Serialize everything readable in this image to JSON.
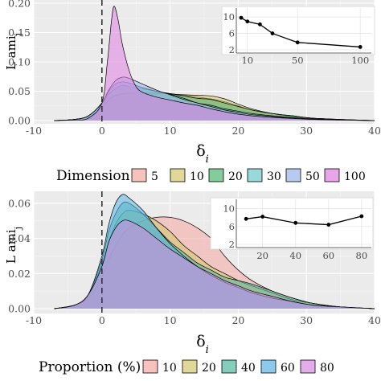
{
  "chart_data": [
    {
      "type": "area",
      "id": "top",
      "xlabel": "δ",
      "xlabel_sub": "i",
      "ylabel": "L ami",
      "ylabel_sub": "j",
      "xlim": [
        -10,
        40
      ],
      "ylim": [
        0,
        0.2
      ],
      "x_ticks": [
        "-10",
        "0",
        "10",
        "20",
        "30",
        "40"
      ],
      "y_ticks": [
        "0.00",
        "0.05",
        "0.10",
        "0.15",
        "0.20"
      ],
      "vline": 0,
      "legend_title": "Dimension",
      "legend_position": "bottom",
      "series": [
        {
          "name": "5",
          "color": "#f4a6a0",
          "points": [
            [
              -7,
              0
            ],
            [
              -4,
              0.002
            ],
            [
              -2,
              0.006
            ],
            [
              0,
              0.02
            ],
            [
              1,
              0.035
            ],
            [
              2,
              0.042
            ],
            [
              3,
              0.045
            ],
            [
              4,
              0.046
            ],
            [
              6,
              0.047
            ],
            [
              8,
              0.047
            ],
            [
              10,
              0.046
            ],
            [
              12,
              0.043
            ],
            [
              14,
              0.04
            ],
            [
              16,
              0.037
            ],
            [
              18,
              0.032
            ],
            [
              20,
              0.025
            ],
            [
              22,
              0.018
            ],
            [
              25,
              0.012
            ],
            [
              28,
              0.008
            ],
            [
              31,
              0.004
            ],
            [
              35,
              0.002
            ],
            [
              40,
              0
            ]
          ]
        },
        {
          "name": "10",
          "color": "#d4c86b",
          "points": [
            [
              -7,
              0
            ],
            [
              -4,
              0.002
            ],
            [
              -2,
              0.006
            ],
            [
              0,
              0.022
            ],
            [
              1,
              0.036
            ],
            [
              2,
              0.043
            ],
            [
              3,
              0.046
            ],
            [
              5,
              0.047
            ],
            [
              8,
              0.046
            ],
            [
              10,
              0.045
            ],
            [
              12,
              0.044
            ],
            [
              14,
              0.043
            ],
            [
              16,
              0.042
            ],
            [
              18,
              0.037
            ],
            [
              20,
              0.028
            ],
            [
              22,
              0.02
            ],
            [
              25,
              0.012
            ],
            [
              28,
              0.007
            ],
            [
              31,
              0.004
            ],
            [
              35,
              0.002
            ],
            [
              40,
              0
            ]
          ]
        },
        {
          "name": "20",
          "color": "#4fb873",
          "points": [
            [
              -7,
              0
            ],
            [
              -4,
              0.002
            ],
            [
              -2,
              0.008
            ],
            [
              0,
              0.028
            ],
            [
              1,
              0.045
            ],
            [
              2,
              0.055
            ],
            [
              3,
              0.06
            ],
            [
              4,
              0.058
            ],
            [
              6,
              0.054
            ],
            [
              8,
              0.05
            ],
            [
              10,
              0.046
            ],
            [
              12,
              0.042
            ],
            [
              14,
              0.038
            ],
            [
              16,
              0.036
            ],
            [
              18,
              0.03
            ],
            [
              20,
              0.024
            ],
            [
              22,
              0.018
            ],
            [
              25,
              0.012
            ],
            [
              28,
              0.008
            ],
            [
              31,
              0.004
            ],
            [
              35,
              0.002
            ],
            [
              40,
              0
            ]
          ]
        },
        {
          "name": "30",
          "color": "#6cc9c9",
          "points": [
            [
              -7,
              0
            ],
            [
              -4,
              0.002
            ],
            [
              -2,
              0.008
            ],
            [
              0,
              0.03
            ],
            [
              1,
              0.05
            ],
            [
              2,
              0.062
            ],
            [
              3,
              0.066
            ],
            [
              4,
              0.064
            ],
            [
              6,
              0.056
            ],
            [
              8,
              0.05
            ],
            [
              10,
              0.045
            ],
            [
              12,
              0.038
            ],
            [
              14,
              0.03
            ],
            [
              16,
              0.026
            ],
            [
              18,
              0.02
            ],
            [
              20,
              0.016
            ],
            [
              22,
              0.012
            ],
            [
              25,
              0.008
            ],
            [
              28,
              0.005
            ],
            [
              31,
              0.003
            ],
            [
              35,
              0.001
            ],
            [
              40,
              0
            ]
          ]
        },
        {
          "name": "50",
          "color": "#9ab4ea",
          "points": [
            [
              -7,
              0
            ],
            [
              -4,
              0.002
            ],
            [
              -2,
              0.008
            ],
            [
              0,
              0.03
            ],
            [
              1,
              0.052
            ],
            [
              2,
              0.068
            ],
            [
              3,
              0.074
            ],
            [
              4,
              0.072
            ],
            [
              6,
              0.062
            ],
            [
              8,
              0.052
            ],
            [
              10,
              0.044
            ],
            [
              12,
              0.036
            ],
            [
              14,
              0.03
            ],
            [
              16,
              0.024
            ],
            [
              18,
              0.018
            ],
            [
              20,
              0.014
            ],
            [
              22,
              0.01
            ],
            [
              25,
              0.007
            ],
            [
              28,
              0.004
            ],
            [
              31,
              0.002
            ],
            [
              35,
              0.001
            ],
            [
              40,
              0
            ]
          ]
        },
        {
          "name": "100",
          "color": "#e07fe0",
          "points": [
            [
              -7,
              0
            ],
            [
              -4,
              0.001
            ],
            [
              -2,
              0.004
            ],
            [
              0,
              0.03
            ],
            [
              0.8,
              0.1
            ],
            [
              1.4,
              0.17
            ],
            [
              1.8,
              0.195
            ],
            [
              2.4,
              0.17
            ],
            [
              3,
              0.13
            ],
            [
              4,
              0.085
            ],
            [
              5,
              0.058
            ],
            [
              6,
              0.048
            ],
            [
              8,
              0.04
            ],
            [
              10,
              0.035
            ],
            [
              12,
              0.03
            ],
            [
              14,
              0.026
            ],
            [
              16,
              0.02
            ],
            [
              18,
              0.015
            ],
            [
              20,
              0.011
            ],
            [
              23,
              0.007
            ],
            [
              27,
              0.004
            ],
            [
              31,
              0.002
            ],
            [
              35,
              0.001
            ],
            [
              40,
              0
            ]
          ]
        }
      ],
      "inset": {
        "type": "line",
        "xlim": [
          5,
          105
        ],
        "ylim": [
          2,
          11
        ],
        "x_ticks": [
          "10",
          "50",
          "100"
        ],
        "y_ticks": [
          "2",
          "6",
          "10"
        ],
        "x": [
          5,
          10,
          20,
          30,
          50,
          100
        ],
        "y": [
          9.8,
          8.9,
          8.2,
          6.0,
          3.8,
          2.7
        ]
      }
    },
    {
      "type": "area",
      "id": "bottom",
      "xlabel": "δ",
      "xlabel_sub": "i",
      "ylabel": "L ami",
      "ylabel_sub": "j",
      "xlim": [
        -10,
        40
      ],
      "ylim": [
        0,
        0.065
      ],
      "x_ticks": [
        "-10",
        "0",
        "10",
        "20",
        "30",
        "40"
      ],
      "y_ticks": [
        "0.00",
        "0.02",
        "0.04",
        "0.06"
      ],
      "vline": 0,
      "legend_title": "Proportion (%)",
      "legend_position": "bottom",
      "series": [
        {
          "name": "10",
          "color": "#f4a6a0",
          "points": [
            [
              -7,
              0
            ],
            [
              -4,
              0.002
            ],
            [
              -2,
              0.006
            ],
            [
              0,
              0.018
            ],
            [
              1,
              0.028
            ],
            [
              2,
              0.036
            ],
            [
              3,
              0.042
            ],
            [
              4,
              0.046
            ],
            [
              6,
              0.05
            ],
            [
              8,
              0.052
            ],
            [
              10,
              0.052
            ],
            [
              12,
              0.05
            ],
            [
              14,
              0.046
            ],
            [
              16,
              0.04
            ],
            [
              18,
              0.03
            ],
            [
              20,
              0.022
            ],
            [
              22,
              0.016
            ],
            [
              25,
              0.01
            ],
            [
              28,
              0.006
            ],
            [
              31,
              0.003
            ],
            [
              35,
              0.001
            ],
            [
              40,
              0
            ]
          ]
        },
        {
          "name": "20",
          "color": "#d4c86b",
          "points": [
            [
              -7,
              0
            ],
            [
              -4,
              0.002
            ],
            [
              -2,
              0.008
            ],
            [
              0,
              0.025
            ],
            [
              1,
              0.038
            ],
            [
              2,
              0.048
            ],
            [
              3,
              0.054
            ],
            [
              4,
              0.056
            ],
            [
              6,
              0.054
            ],
            [
              8,
              0.05
            ],
            [
              10,
              0.044
            ],
            [
              12,
              0.036
            ],
            [
              14,
              0.03
            ],
            [
              16,
              0.024
            ],
            [
              18,
              0.02
            ],
            [
              20,
              0.016
            ],
            [
              22,
              0.013
            ],
            [
              25,
              0.009
            ],
            [
              28,
              0.005
            ],
            [
              31,
              0.003
            ],
            [
              35,
              0.001
            ],
            [
              40,
              0
            ]
          ]
        },
        {
          "name": "40",
          "color": "#4fb8a0",
          "points": [
            [
              -7,
              0
            ],
            [
              -4,
              0.002
            ],
            [
              -2,
              0.008
            ],
            [
              0,
              0.028
            ],
            [
              1,
              0.044
            ],
            [
              2,
              0.054
            ],
            [
              3,
              0.06
            ],
            [
              4,
              0.06
            ],
            [
              6,
              0.054
            ],
            [
              8,
              0.046
            ],
            [
              10,
              0.038
            ],
            [
              12,
              0.032
            ],
            [
              14,
              0.026
            ],
            [
              16,
              0.022
            ],
            [
              18,
              0.018
            ],
            [
              20,
              0.016
            ],
            [
              22,
              0.014
            ],
            [
              25,
              0.01
            ],
            [
              28,
              0.006
            ],
            [
              31,
              0.003
            ],
            [
              35,
              0.001
            ],
            [
              40,
              0
            ]
          ]
        },
        {
          "name": "60",
          "color": "#5ab4e6",
          "points": [
            [
              -7,
              0
            ],
            [
              -4,
              0.002
            ],
            [
              -2,
              0.008
            ],
            [
              0,
              0.03
            ],
            [
              1,
              0.048
            ],
            [
              2,
              0.06
            ],
            [
              3,
              0.065
            ],
            [
              4,
              0.063
            ],
            [
              6,
              0.056
            ],
            [
              8,
              0.046
            ],
            [
              10,
              0.037
            ],
            [
              12,
              0.03
            ],
            [
              14,
              0.024
            ],
            [
              16,
              0.019
            ],
            [
              18,
              0.015
            ],
            [
              20,
              0.012
            ],
            [
              22,
              0.009
            ],
            [
              25,
              0.006
            ],
            [
              28,
              0.004
            ],
            [
              31,
              0.002
            ],
            [
              35,
              0.001
            ],
            [
              40,
              0
            ]
          ]
        },
        {
          "name": "80",
          "color": "#d58ae0",
          "points": [
            [
              -7,
              0
            ],
            [
              -4,
              0.002
            ],
            [
              -2,
              0.008
            ],
            [
              0,
              0.024
            ],
            [
              1,
              0.038
            ],
            [
              2,
              0.046
            ],
            [
              3,
              0.05
            ],
            [
              4,
              0.05
            ],
            [
              6,
              0.046
            ],
            [
              8,
              0.04
            ],
            [
              10,
              0.034
            ],
            [
              12,
              0.029
            ],
            [
              14,
              0.024
            ],
            [
              16,
              0.02
            ],
            [
              18,
              0.016
            ],
            [
              20,
              0.013
            ],
            [
              22,
              0.01
            ],
            [
              25,
              0.007
            ],
            [
              28,
              0.004
            ],
            [
              31,
              0.002
            ],
            [
              35,
              0.001
            ],
            [
              40,
              0
            ]
          ]
        }
      ],
      "inset": {
        "type": "line",
        "xlim": [
          7,
          83
        ],
        "ylim": [
          2,
          11
        ],
        "x_ticks": [
          "20",
          "40",
          "60",
          "80"
        ],
        "y_ticks": [
          "2",
          "6",
          "10"
        ],
        "x": [
          10,
          20,
          40,
          60,
          80
        ],
        "y": [
          7.7,
          8.2,
          6.8,
          6.4,
          8.3
        ]
      }
    }
  ],
  "colors": {
    "panel_bg": "#ebebeb",
    "grid": "#ffffff",
    "vline": "#333333",
    "outline": "#000000"
  }
}
